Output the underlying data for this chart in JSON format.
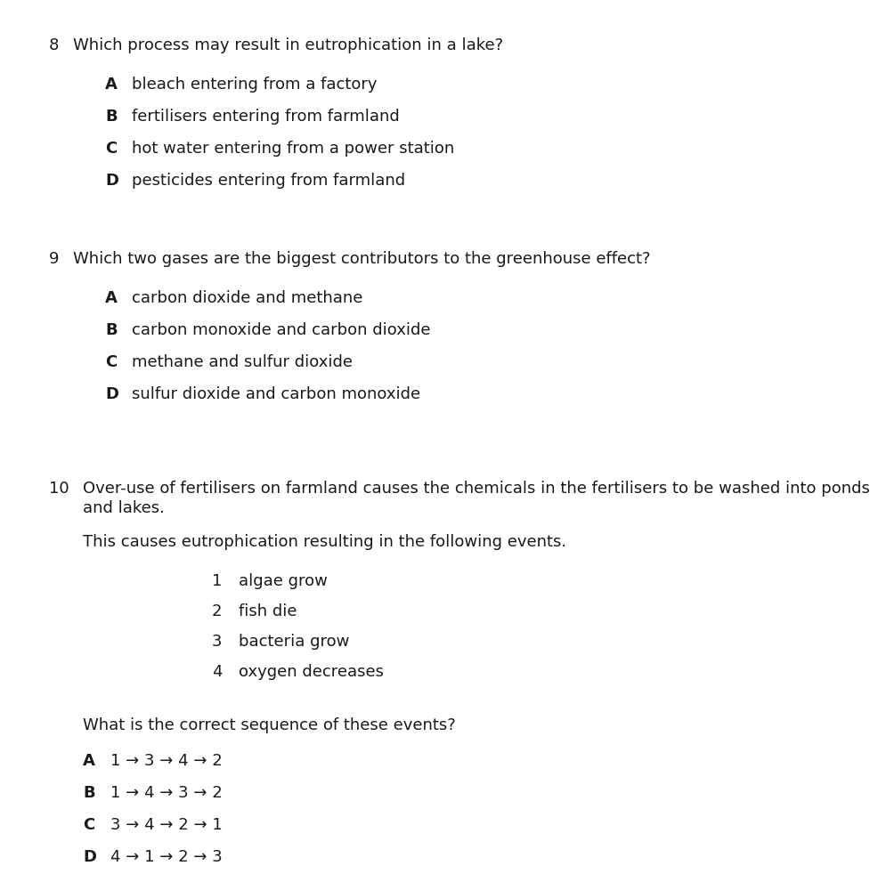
{
  "bg_color": "#ffffff",
  "text_color": "#1a1a1a",
  "q8_number": "8",
  "q8_question": "Which process may result in eutrophication in a lake?",
  "q8_options": [
    [
      "A",
      "bleach entering from a factory"
    ],
    [
      "B",
      "fertilisers entering from farmland"
    ],
    [
      "C",
      "hot water entering from a power station"
    ],
    [
      "D",
      "pesticides entering from farmland"
    ]
  ],
  "q9_number": "9",
  "q9_question": "Which two gases are the biggest contributors to the greenhouse effect?",
  "q9_options": [
    [
      "A",
      "carbon dioxide and methane"
    ],
    [
      "B",
      "carbon monoxide and carbon dioxide"
    ],
    [
      "C",
      "methane and sulfur dioxide"
    ],
    [
      "D",
      "sulfur dioxide and carbon monoxide"
    ]
  ],
  "q10_number": "10",
  "q10_question_line1": "Over-use of fertilisers on farmland causes the chemicals in the fertilisers to be washed into ponds",
  "q10_question_line2": "and lakes.",
  "q10_subtext": "This causes eutrophication resulting in the following events.",
  "q10_numbered_items": [
    [
      "1",
      "algae grow"
    ],
    [
      "2",
      "fish die"
    ],
    [
      "3",
      "bacteria grow"
    ],
    [
      "4",
      "oxygen decreases"
    ]
  ],
  "q10_prompt": "What is the correct sequence of these events?",
  "q10_options": [
    [
      "A",
      "1 → 3 → 4 → 2"
    ],
    [
      "B",
      "1 → 4 → 3 → 2"
    ],
    [
      "C",
      "3 → 4 → 2 → 1"
    ],
    [
      "D",
      "4 → 1 → 2 → 3"
    ]
  ],
  "font_size": 13.0
}
